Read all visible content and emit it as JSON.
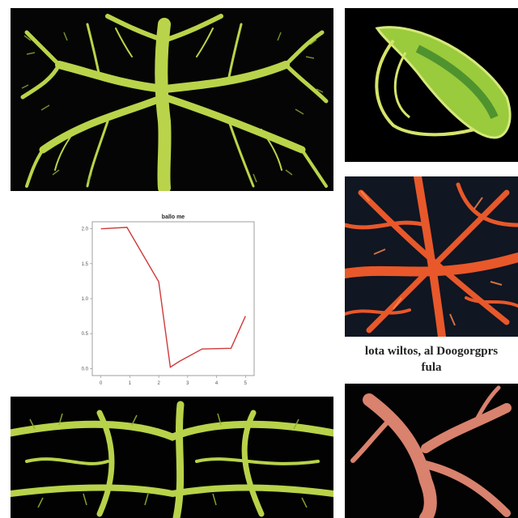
{
  "caption": {
    "line1": "lota wiltos, al Doogorgprs",
    "line2": "fula"
  },
  "chart_data": {
    "type": "line",
    "title": "ballo me",
    "xlabel": "",
    "ylabel": "",
    "x": [
      0,
      0.9,
      2.0,
      2.4,
      2.7,
      3.5,
      4.5,
      5.0
    ],
    "values": [
      2.0,
      2.02,
      1.24,
      0.02,
      0.1,
      0.28,
      0.29,
      0.75
    ],
    "xlim": [
      -0.3,
      5.3
    ],
    "ylim": [
      -0.1,
      2.1
    ],
    "xticks": [
      "0",
      "1",
      "2",
      "3",
      "4",
      "5"
    ],
    "yticks": [
      "2.0",
      "1.5",
      "1.0",
      "0.5",
      "0.0"
    ],
    "line_color": "#d03a3a",
    "grid": false
  },
  "colors": {
    "vessel_green": "#b8d24a",
    "vessel_red": "#e8582a",
    "vessel_pink": "#d9826e",
    "organ_green": "#9acb3c"
  }
}
